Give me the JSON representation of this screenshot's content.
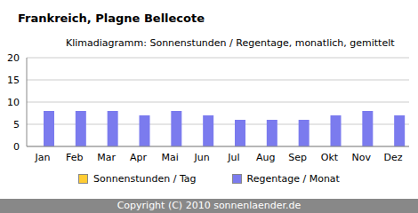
{
  "chart_data": {
    "type": "bar",
    "title": "Frankreich, Plagne Bellecote",
    "subtitle": "Klimadiagramm: Sonnenstunden / Regentage, monatlich, gemittelt",
    "categories": [
      "Jan",
      "Feb",
      "Mar",
      "Apr",
      "Mai",
      "Jun",
      "Jul",
      "Aug",
      "Sep",
      "Okt",
      "Nov",
      "Dez"
    ],
    "series": [
      {
        "name": "Sonnenstunden / Tag",
        "color": "#ffcc33",
        "values": [
          0,
          0,
          0,
          0,
          0,
          0,
          0,
          0,
          0,
          0,
          0,
          0
        ]
      },
      {
        "name": "Regentage / Monat",
        "color": "#7b7bee",
        "values": [
          8,
          8,
          8,
          7,
          8,
          7,
          6,
          6,
          6,
          7,
          8,
          7
        ]
      }
    ],
    "ylim": [
      0,
      20
    ],
    "yticks": [
      0,
      5,
      10,
      15,
      20
    ],
    "grid": true,
    "legend": "bottom",
    "copyright": "Copyright (C) 2010 sonnenlaender.de"
  }
}
